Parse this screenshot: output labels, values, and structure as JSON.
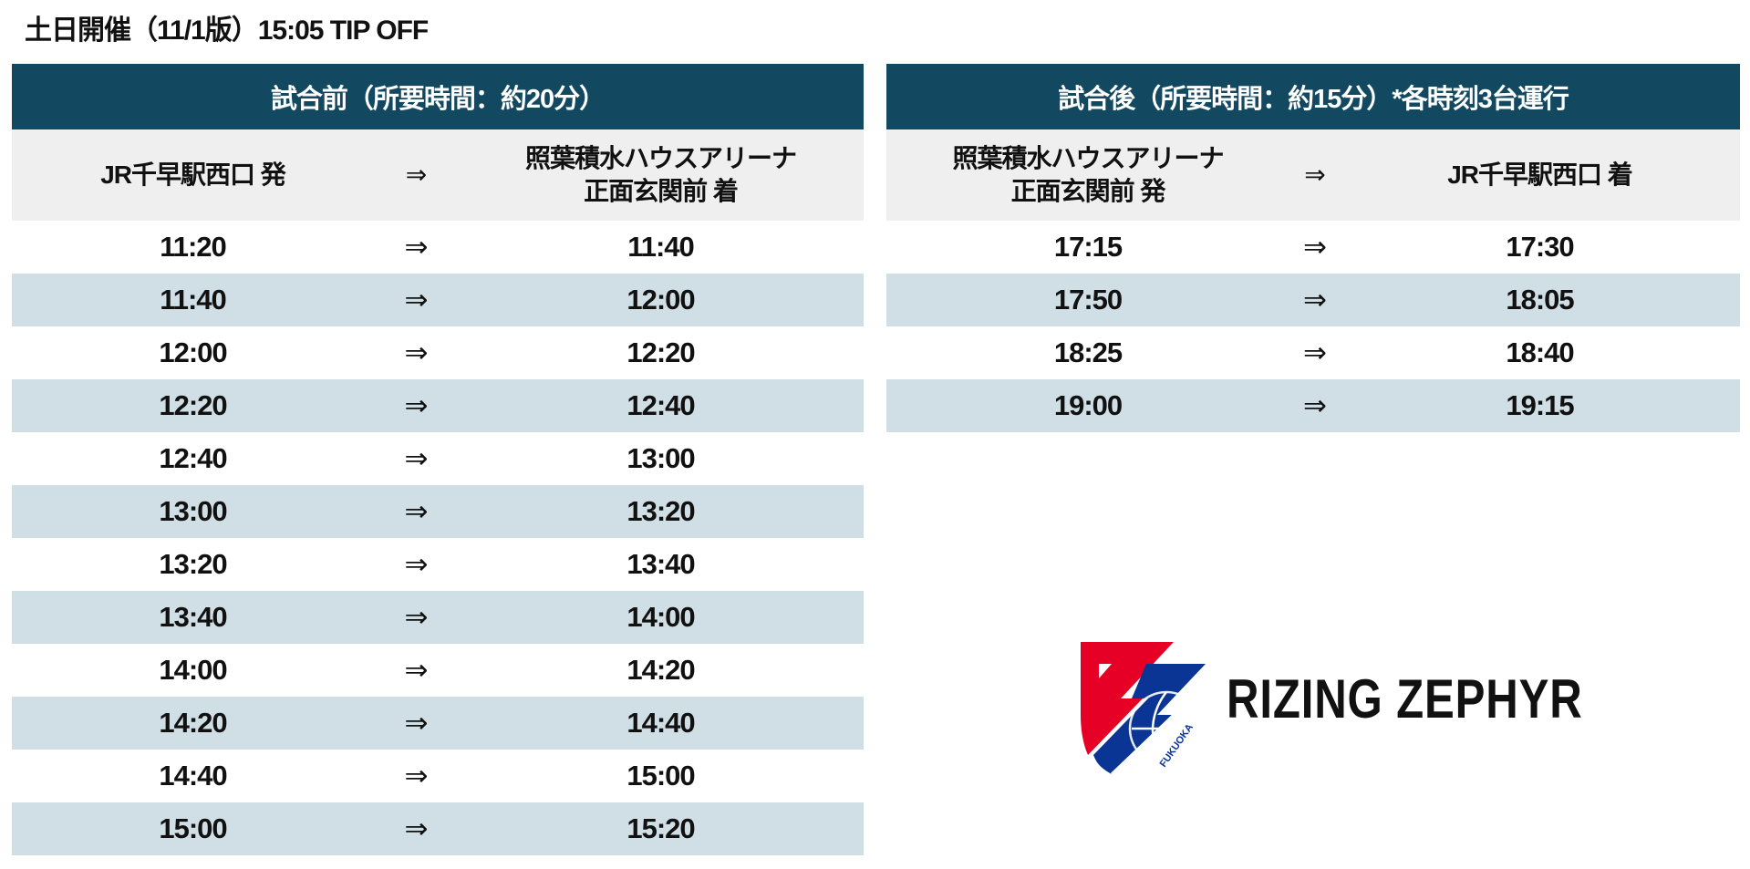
{
  "title": "土日開催（11/1版）15:05 TIP OFF",
  "arrow": "⇒",
  "before": {
    "header": "試合前（所要時間：約20分）",
    "from": "JR千早駅西口 発",
    "to_line1": "照葉積水ハウスアリーナ",
    "to_line2": "正面玄関前 着",
    "rows": [
      [
        "11:20",
        "11:40"
      ],
      [
        "11:40",
        "12:00"
      ],
      [
        "12:00",
        "12:20"
      ],
      [
        "12:20",
        "12:40"
      ],
      [
        "12:40",
        "13:00"
      ],
      [
        "13:00",
        "13:20"
      ],
      [
        "13:20",
        "13:40"
      ],
      [
        "13:40",
        "14:00"
      ],
      [
        "14:00",
        "14:20"
      ],
      [
        "14:20",
        "14:40"
      ],
      [
        "14:40",
        "15:00"
      ],
      [
        "15:00",
        "15:20"
      ]
    ]
  },
  "after": {
    "header": "試合後（所要時間：約15分）*各時刻3台運行",
    "from_line1": "照葉積水ハウスアリーナ",
    "from_line2": "正面玄関前 発",
    "to": "JR千早駅西口 着",
    "rows": [
      [
        "17:15",
        "17:30"
      ],
      [
        "17:50",
        "18:05"
      ],
      [
        "18:25",
        "18:40"
      ],
      [
        "19:00",
        "19:15"
      ]
    ]
  },
  "logo": {
    "name": "RIZING ZEPHYR",
    "sub": "FUKUOKA",
    "colors": {
      "red": "#e60026",
      "blue": "#0b3594"
    }
  },
  "colors": {
    "header": "#134960",
    "subheader": "#efefef",
    "stripe": "#d0dfe5"
  }
}
